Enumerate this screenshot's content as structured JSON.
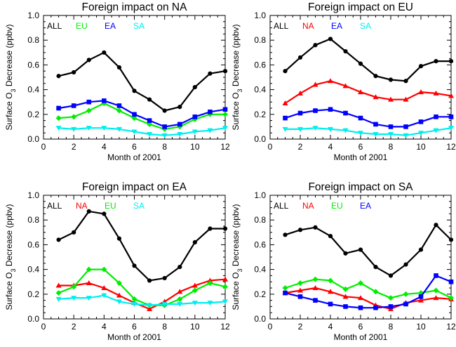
{
  "chart_data": [
    {
      "type": "line",
      "title": "Foreign impact on NA",
      "xlabel": "Month of 2001",
      "ylabel": "Surface O3 Decrease (ppbv)",
      "xlim": [
        0,
        12
      ],
      "ylim": [
        0,
        1.0
      ],
      "xticks": [
        "0",
        "2",
        "4",
        "6",
        "8",
        "10",
        "12"
      ],
      "yticks": [
        "0.0",
        "0.2",
        "0.4",
        "0.6",
        "0.8",
        "1.0"
      ],
      "x": [
        1,
        2,
        3,
        4,
        5,
        6,
        7,
        8,
        9,
        10,
        11,
        12
      ],
      "series": [
        {
          "name": "ALL",
          "color": "#000000",
          "marker": "circle",
          "values": [
            0.51,
            0.54,
            0.64,
            0.7,
            0.58,
            0.39,
            0.32,
            0.23,
            0.26,
            0.42,
            0.53,
            0.55
          ]
        },
        {
          "name": "EU",
          "color": "#00ee00",
          "marker": "diamond",
          "values": [
            0.17,
            0.18,
            0.23,
            0.29,
            0.23,
            0.17,
            0.12,
            0.08,
            0.1,
            0.16,
            0.2,
            0.2
          ]
        },
        {
          "name": "EA",
          "color": "#0000ff",
          "marker": "square",
          "values": [
            0.25,
            0.27,
            0.3,
            0.31,
            0.27,
            0.2,
            0.15,
            0.1,
            0.12,
            0.18,
            0.22,
            0.24
          ]
        },
        {
          "name": "SA",
          "color": "#00eeee",
          "marker": "triangle-down",
          "values": [
            0.09,
            0.08,
            0.09,
            0.09,
            0.08,
            0.06,
            0.04,
            0.03,
            0.04,
            0.06,
            0.07,
            0.09
          ]
        }
      ]
    },
    {
      "type": "line",
      "title": "Foreign impact on EU",
      "xlabel": "Month of 2001",
      "ylabel": "Surface O3 Decrease (ppbv)",
      "xlim": [
        0,
        12
      ],
      "ylim": [
        0,
        1.0
      ],
      "xticks": [
        "0",
        "2",
        "4",
        "6",
        "8",
        "10",
        "12"
      ],
      "yticks": [
        "0.0",
        "0.2",
        "0.4",
        "0.6",
        "0.8",
        "1.0"
      ],
      "x": [
        1,
        2,
        3,
        4,
        5,
        6,
        7,
        8,
        9,
        10,
        11,
        12
      ],
      "series": [
        {
          "name": "ALL",
          "color": "#000000",
          "marker": "circle",
          "values": [
            0.55,
            0.66,
            0.76,
            0.81,
            0.71,
            0.61,
            0.51,
            0.48,
            0.47,
            0.59,
            0.63,
            0.63
          ]
        },
        {
          "name": "NA",
          "color": "#ff0000",
          "marker": "triangle",
          "values": [
            0.29,
            0.37,
            0.44,
            0.47,
            0.43,
            0.38,
            0.34,
            0.32,
            0.32,
            0.38,
            0.37,
            0.35
          ]
        },
        {
          "name": "EA",
          "color": "#0000ff",
          "marker": "square",
          "values": [
            0.17,
            0.21,
            0.23,
            0.24,
            0.21,
            0.17,
            0.12,
            0.1,
            0.1,
            0.14,
            0.18,
            0.18
          ]
        },
        {
          "name": "SA",
          "color": "#00eeee",
          "marker": "triangle-down",
          "values": [
            0.08,
            0.08,
            0.09,
            0.08,
            0.07,
            0.05,
            0.04,
            0.04,
            0.03,
            0.05,
            0.07,
            0.09
          ]
        }
      ]
    },
    {
      "type": "line",
      "title": "Foreign impact on EA",
      "xlabel": "Month of 2001",
      "ylabel": "Surface O3 Decrease (ppbv)",
      "xlim": [
        0,
        12
      ],
      "ylim": [
        0,
        1.0
      ],
      "xticks": [
        "0",
        "2",
        "4",
        "6",
        "8",
        "10",
        "12"
      ],
      "yticks": [
        "0.0",
        "0.2",
        "0.4",
        "0.6",
        "0.8",
        "1.0"
      ],
      "x": [
        1,
        2,
        3,
        4,
        5,
        6,
        7,
        8,
        9,
        10,
        11,
        12
      ],
      "series": [
        {
          "name": "ALL",
          "color": "#000000",
          "marker": "circle",
          "values": [
            0.64,
            0.7,
            0.87,
            0.85,
            0.65,
            0.43,
            0.31,
            0.33,
            0.42,
            0.62,
            0.73,
            0.73
          ]
        },
        {
          "name": "NA",
          "color": "#ff0000",
          "marker": "triangle",
          "values": [
            0.27,
            0.27,
            0.29,
            0.25,
            0.19,
            0.13,
            0.08,
            0.14,
            0.22,
            0.27,
            0.31,
            0.32
          ]
        },
        {
          "name": "EU",
          "color": "#00ee00",
          "marker": "diamond",
          "values": [
            0.21,
            0.26,
            0.4,
            0.4,
            0.29,
            0.16,
            0.11,
            0.11,
            0.16,
            0.23,
            0.29,
            0.26
          ]
        },
        {
          "name": "SA",
          "color": "#00eeee",
          "marker": "triangle-down",
          "values": [
            0.16,
            0.17,
            0.17,
            0.19,
            0.14,
            0.12,
            0.11,
            0.12,
            0.12,
            0.13,
            0.13,
            0.14
          ]
        }
      ]
    },
    {
      "type": "line",
      "title": "Foreign impact on SA",
      "xlabel": "Month of 2001",
      "ylabel": "Surface O3 Decrease (ppbv)",
      "xlim": [
        0,
        12
      ],
      "ylim": [
        0,
        1.0
      ],
      "xticks": [
        "0",
        "2",
        "4",
        "6",
        "8",
        "10",
        "12"
      ],
      "yticks": [
        "0.0",
        "0.2",
        "0.4",
        "0.6",
        "0.8",
        "1.0"
      ],
      "x": [
        1,
        2,
        3,
        4,
        5,
        6,
        7,
        8,
        9,
        10,
        11,
        12
      ],
      "series": [
        {
          "name": "ALL",
          "color": "#000000",
          "marker": "circle",
          "values": [
            0.68,
            0.72,
            0.74,
            0.67,
            0.53,
            0.56,
            0.42,
            0.35,
            0.44,
            0.56,
            0.76,
            0.64
          ]
        },
        {
          "name": "NA",
          "color": "#ff0000",
          "marker": "triangle",
          "values": [
            0.21,
            0.23,
            0.25,
            0.22,
            0.18,
            0.17,
            0.11,
            0.08,
            0.13,
            0.15,
            0.17,
            0.16
          ]
        },
        {
          "name": "EU",
          "color": "#00ee00",
          "marker": "diamond",
          "values": [
            0.25,
            0.29,
            0.32,
            0.31,
            0.24,
            0.29,
            0.22,
            0.17,
            0.2,
            0.21,
            0.23,
            0.17
          ]
        },
        {
          "name": "EA",
          "color": "#0000ff",
          "marker": "square",
          "values": [
            0.21,
            0.18,
            0.15,
            0.12,
            0.1,
            0.09,
            0.09,
            0.1,
            0.12,
            0.18,
            0.35,
            0.3
          ]
        }
      ]
    }
  ]
}
